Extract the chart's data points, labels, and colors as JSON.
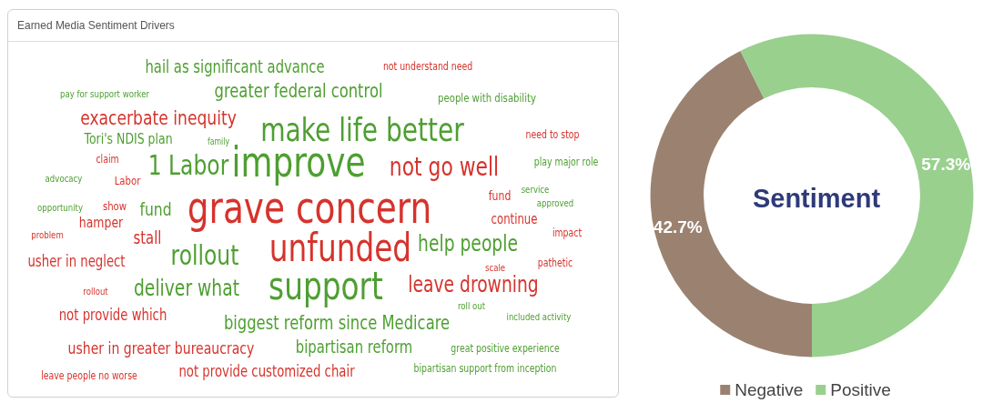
{
  "chart_data": [
    {
      "type": "other",
      "title": "Earned Media Sentiment Drivers",
      "annotations": [
        "hail as significant advance",
        "not understand need",
        "pay for support worker",
        "greater federal control",
        "people with disability",
        "exacerbate inequity",
        "make life better",
        "need to stop",
        "Tori's NDIS plan",
        "family",
        "claim",
        "1 Labor",
        "improve",
        "not go well",
        "play major role",
        "advocacy",
        "Labor",
        "grave concern",
        "fund",
        "service",
        "opportunity",
        "show",
        "fund",
        "approved",
        "hamper",
        "continue",
        "problem",
        "stall",
        "impact",
        "rollout",
        "unfunded",
        "help people",
        "usher in neglect",
        "scale",
        "pathetic",
        "support",
        "rollout",
        "deliver what",
        "leave drowning",
        "roll out",
        "not provide which",
        "biggest reform since Medicare",
        "included activity",
        "usher in greater bureaucracy",
        "bipartisan reform",
        "great positive experience",
        "leave people no worse",
        "not provide customized chair",
        "bipartisan support from inception"
      ],
      "colors": [
        "#4e9f31",
        "#d6332c",
        "#4e9f31",
        "#4e9f31",
        "#4e9f31",
        "#d6332c",
        "#4e9f31",
        "#d6332c",
        "#4e9f31",
        "#4e9f31",
        "#d6332c",
        "#4e9f31",
        "#4e9f31",
        "#d6332c",
        "#4e9f31",
        "#4e9f31",
        "#d6332c",
        "#d6332c",
        "#d6332c",
        "#4e9f31",
        "#4e9f31",
        "#d6332c",
        "#4e9f31",
        "#4e9f31",
        "#d6332c",
        "#d6332c",
        "#d6332c",
        "#d6332c",
        "#d6332c",
        "#4e9f31",
        "#d6332c",
        "#4e9f31",
        "#d6332c",
        "#d6332c",
        "#d6332c",
        "#4e9f31",
        "#d6332c",
        "#4e9f31",
        "#d6332c",
        "#4e9f31",
        "#d6332c",
        "#4e9f31",
        "#4e9f31",
        "#d6332c",
        "#4e9f31",
        "#4e9f31",
        "#d6332c",
        "#d6332c",
        "#4e9f31"
      ]
    },
    {
      "type": "donut",
      "title": "Sentiment",
      "categories": [
        "Negative",
        "Positive"
      ],
      "values": [
        42.7,
        57.3
      ],
      "colors": [
        "#9b8270",
        "#99d08e"
      ],
      "value_labels": [
        "42.7%",
        "57.3%"
      ],
      "legend": "bottom"
    }
  ]
}
